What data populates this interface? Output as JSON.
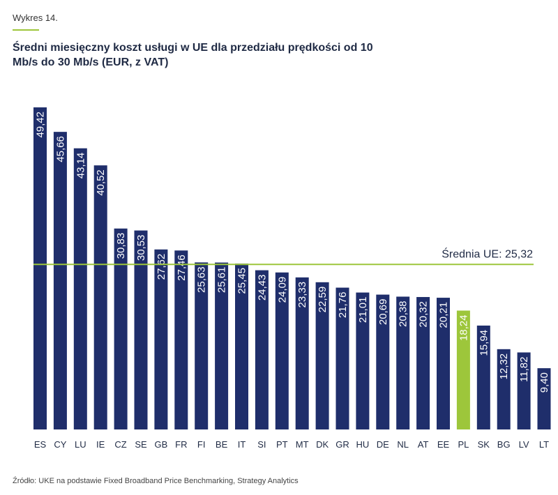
{
  "header": {
    "label": "Wykres 14.",
    "title": "Średni miesięczny koszt usługi w UE dla przedziału prędkości od 10 Mb/s do 30 Mb/s (EUR, z VAT)"
  },
  "footer": {
    "source": "Źródło: UKE na podstawie Fixed Broadband Price Benchmarking, Strategy Analytics"
  },
  "colors": {
    "bar": "#1f2e6b",
    "highlight": "#9dc63b",
    "average_line": "#9dc63b"
  },
  "chart_data": {
    "type": "bar",
    "categories": [
      "ES",
      "CY",
      "LU",
      "IE",
      "CZ",
      "SE",
      "GB",
      "FR",
      "FI",
      "BE",
      "IT",
      "SI",
      "PT",
      "MT",
      "DK",
      "GR",
      "HU",
      "DE",
      "NL",
      "AT",
      "EE",
      "PL",
      "SK",
      "BG",
      "LV",
      "LT"
    ],
    "values": [
      49.42,
      45.66,
      43.14,
      40.52,
      30.83,
      30.53,
      27.62,
      27.46,
      25.63,
      25.61,
      25.45,
      24.43,
      24.09,
      23.33,
      22.59,
      21.76,
      21.01,
      20.69,
      20.38,
      20.32,
      20.21,
      18.24,
      15.94,
      12.32,
      11.82,
      9.4
    ],
    "value_labels": [
      "49,42",
      "45,66",
      "43,14",
      "40,52",
      "30,83",
      "30,53",
      "27,62",
      "27,46",
      "25,63",
      "25,61",
      "25,45",
      "24,43",
      "24,09",
      "23,33",
      "22,59",
      "21,76",
      "21,01",
      "20,69",
      "20,38",
      "20,32",
      "20,21",
      "18,24",
      "15,94",
      "12,32",
      "11,82",
      "9,40"
    ],
    "highlighted_category": "PL",
    "average": 25.32,
    "average_label": "Średnia UE: 25,32",
    "ylim": [
      0,
      50
    ],
    "xlabel": "",
    "ylabel": "",
    "unit": "EUR, z VAT"
  }
}
